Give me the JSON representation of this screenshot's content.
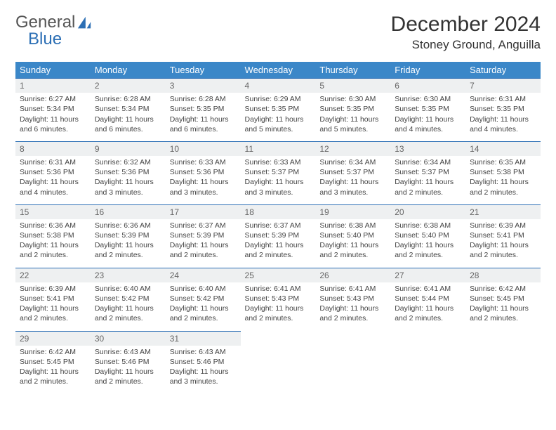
{
  "logo": {
    "text1": "General",
    "text2": "Blue"
  },
  "title": "December 2024",
  "location": "Stoney Ground, Anguilla",
  "colors": {
    "header_bg": "#3b87c8",
    "header_text": "#ffffff",
    "daynum_bg": "#eef0f1",
    "rule": "#2c6fb5",
    "body_text": "#444444",
    "logo_gray": "#555555",
    "logo_blue": "#2c6fb5"
  },
  "weekdays": [
    "Sunday",
    "Monday",
    "Tuesday",
    "Wednesday",
    "Thursday",
    "Friday",
    "Saturday"
  ],
  "weeks": [
    [
      {
        "n": "1",
        "sr": "6:27 AM",
        "ss": "5:34 PM",
        "dl": "11 hours and 6 minutes."
      },
      {
        "n": "2",
        "sr": "6:28 AM",
        "ss": "5:34 PM",
        "dl": "11 hours and 6 minutes."
      },
      {
        "n": "3",
        "sr": "6:28 AM",
        "ss": "5:35 PM",
        "dl": "11 hours and 6 minutes."
      },
      {
        "n": "4",
        "sr": "6:29 AM",
        "ss": "5:35 PM",
        "dl": "11 hours and 5 minutes."
      },
      {
        "n": "5",
        "sr": "6:30 AM",
        "ss": "5:35 PM",
        "dl": "11 hours and 5 minutes."
      },
      {
        "n": "6",
        "sr": "6:30 AM",
        "ss": "5:35 PM",
        "dl": "11 hours and 4 minutes."
      },
      {
        "n": "7",
        "sr": "6:31 AM",
        "ss": "5:35 PM",
        "dl": "11 hours and 4 minutes."
      }
    ],
    [
      {
        "n": "8",
        "sr": "6:31 AM",
        "ss": "5:36 PM",
        "dl": "11 hours and 4 minutes."
      },
      {
        "n": "9",
        "sr": "6:32 AM",
        "ss": "5:36 PM",
        "dl": "11 hours and 3 minutes."
      },
      {
        "n": "10",
        "sr": "6:33 AM",
        "ss": "5:36 PM",
        "dl": "11 hours and 3 minutes."
      },
      {
        "n": "11",
        "sr": "6:33 AM",
        "ss": "5:37 PM",
        "dl": "11 hours and 3 minutes."
      },
      {
        "n": "12",
        "sr": "6:34 AM",
        "ss": "5:37 PM",
        "dl": "11 hours and 3 minutes."
      },
      {
        "n": "13",
        "sr": "6:34 AM",
        "ss": "5:37 PM",
        "dl": "11 hours and 2 minutes."
      },
      {
        "n": "14",
        "sr": "6:35 AM",
        "ss": "5:38 PM",
        "dl": "11 hours and 2 minutes."
      }
    ],
    [
      {
        "n": "15",
        "sr": "6:36 AM",
        "ss": "5:38 PM",
        "dl": "11 hours and 2 minutes."
      },
      {
        "n": "16",
        "sr": "6:36 AM",
        "ss": "5:39 PM",
        "dl": "11 hours and 2 minutes."
      },
      {
        "n": "17",
        "sr": "6:37 AM",
        "ss": "5:39 PM",
        "dl": "11 hours and 2 minutes."
      },
      {
        "n": "18",
        "sr": "6:37 AM",
        "ss": "5:39 PM",
        "dl": "11 hours and 2 minutes."
      },
      {
        "n": "19",
        "sr": "6:38 AM",
        "ss": "5:40 PM",
        "dl": "11 hours and 2 minutes."
      },
      {
        "n": "20",
        "sr": "6:38 AM",
        "ss": "5:40 PM",
        "dl": "11 hours and 2 minutes."
      },
      {
        "n": "21",
        "sr": "6:39 AM",
        "ss": "5:41 PM",
        "dl": "11 hours and 2 minutes."
      }
    ],
    [
      {
        "n": "22",
        "sr": "6:39 AM",
        "ss": "5:41 PM",
        "dl": "11 hours and 2 minutes."
      },
      {
        "n": "23",
        "sr": "6:40 AM",
        "ss": "5:42 PM",
        "dl": "11 hours and 2 minutes."
      },
      {
        "n": "24",
        "sr": "6:40 AM",
        "ss": "5:42 PM",
        "dl": "11 hours and 2 minutes."
      },
      {
        "n": "25",
        "sr": "6:41 AM",
        "ss": "5:43 PM",
        "dl": "11 hours and 2 minutes."
      },
      {
        "n": "26",
        "sr": "6:41 AM",
        "ss": "5:43 PM",
        "dl": "11 hours and 2 minutes."
      },
      {
        "n": "27",
        "sr": "6:41 AM",
        "ss": "5:44 PM",
        "dl": "11 hours and 2 minutes."
      },
      {
        "n": "28",
        "sr": "6:42 AM",
        "ss": "5:45 PM",
        "dl": "11 hours and 2 minutes."
      }
    ],
    [
      {
        "n": "29",
        "sr": "6:42 AM",
        "ss": "5:45 PM",
        "dl": "11 hours and 2 minutes."
      },
      {
        "n": "30",
        "sr": "6:43 AM",
        "ss": "5:46 PM",
        "dl": "11 hours and 2 minutes."
      },
      {
        "n": "31",
        "sr": "6:43 AM",
        "ss": "5:46 PM",
        "dl": "11 hours and 3 minutes."
      },
      null,
      null,
      null,
      null
    ]
  ],
  "labels": {
    "sunrise": "Sunrise: ",
    "sunset": "Sunset: ",
    "daylight": "Daylight: "
  }
}
